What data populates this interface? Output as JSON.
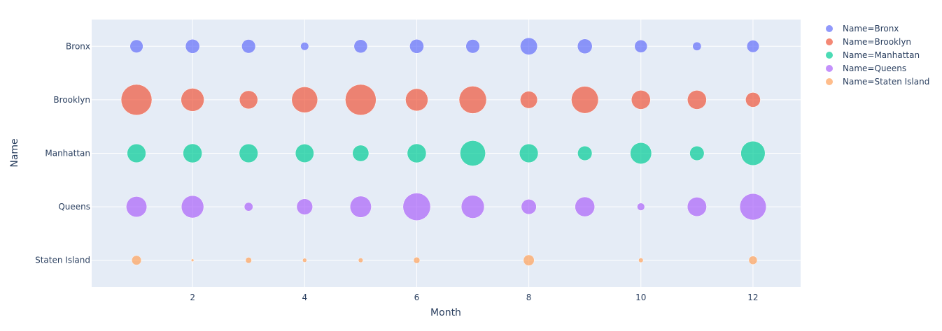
{
  "chart_data": {
    "type": "scatter",
    "subtype": "bubble",
    "title": "",
    "xlabel": "Month",
    "ylabel": "Name",
    "xlim": [
      0.2,
      12.85
    ],
    "x_ticks": [
      2,
      4,
      6,
      8,
      10,
      12
    ],
    "categories": [
      "Bronx",
      "Brooklyn",
      "Manhattan",
      "Queens",
      "Staten Island"
    ],
    "grid": true,
    "legend_position": "top-right",
    "series": [
      {
        "name": "Name=Bronx",
        "category": "Bronx",
        "color": "#636efa",
        "x": [
          1,
          2,
          3,
          4,
          5,
          6,
          7,
          8,
          9,
          10,
          11,
          12
        ],
        "size": [
          18,
          21,
          20,
          7,
          19,
          21,
          20,
          31,
          23,
          17,
          8,
          16
        ]
      },
      {
        "name": "Name=Brooklyn",
        "category": "Brooklyn",
        "color": "#ef553b",
        "x": [
          1,
          2,
          3,
          4,
          5,
          6,
          7,
          8,
          9,
          10,
          11,
          12
        ],
        "size": [
          100,
          56,
          35,
          71,
          100,
          53,
          79,
          31,
          77,
          38,
          38,
          23
        ]
      },
      {
        "name": "Name=Manhattan",
        "category": "Manhattan",
        "color": "#00cc96",
        "x": [
          1,
          2,
          3,
          4,
          5,
          6,
          7,
          8,
          9,
          10,
          11,
          12
        ],
        "size": [
          37,
          38,
          37,
          36,
          28,
          38,
          68,
          37,
          22,
          48,
          22,
          62
        ]
      },
      {
        "name": "Name=Queens",
        "category": "Queens",
        "color": "#ab63fa",
        "x": [
          1,
          2,
          3,
          4,
          5,
          6,
          7,
          8,
          9,
          10,
          11,
          12
        ],
        "size": [
          45,
          53,
          8,
          27,
          48,
          80,
          56,
          24,
          41,
          6,
          39,
          74
        ]
      },
      {
        "name": "Name=Staten Island",
        "category": "Staten Island",
        "color": "#ffa15a",
        "x": [
          1,
          2,
          3,
          4,
          5,
          6,
          7,
          8,
          9,
          10,
          11,
          12
        ],
        "size": [
          9.7,
          0.8,
          3.9,
          1.8,
          2.3,
          4.2,
          null,
          12.6,
          null,
          2.3,
          null,
          7.6
        ]
      }
    ]
  }
}
